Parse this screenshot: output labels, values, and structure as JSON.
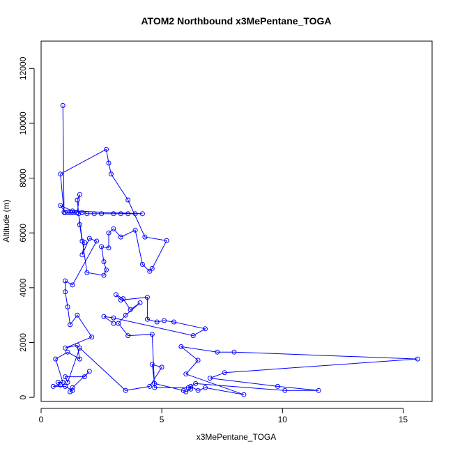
{
  "chart_data": {
    "type": "line",
    "title": "ATOM2 Northbound x3MePentane_TOGA",
    "xlabel": "x3MePentane_TOGA",
    "ylabel": "Altitude (m)",
    "xlim": [
      0,
      16.2
    ],
    "ylim": [
      -150,
      13000
    ],
    "xticks": [
      0,
      5,
      10,
      15
    ],
    "yticks": [
      0,
      2000,
      4000,
      6000,
      8000,
      10000,
      12000
    ],
    "series_color": "#0000ff",
    "background": "#ffffff",
    "points": [
      [
        0.9,
        10650
      ],
      [
        0.95,
        6750
      ],
      [
        0.8,
        8150
      ],
      [
        2.7,
        9050
      ],
      [
        2.8,
        8550
      ],
      [
        2.9,
        8150
      ],
      [
        3.6,
        7200
      ],
      [
        4.3,
        5850
      ],
      [
        5.2,
        5720
      ],
      [
        4.6,
        4700
      ],
      [
        4.5,
        4600
      ],
      [
        4.2,
        4850
      ],
      [
        3.9,
        6100
      ],
      [
        3.3,
        5850
      ],
      [
        3.0,
        6150
      ],
      [
        2.8,
        6000
      ],
      [
        2.8,
        5450
      ],
      [
        2.5,
        5500
      ],
      [
        2.6,
        4950
      ],
      [
        2.7,
        4650
      ],
      [
        2.6,
        4450
      ],
      [
        1.9,
        4550
      ],
      [
        1.55,
        6700
      ],
      [
        1.7,
        6750
      ],
      [
        1.9,
        6700
      ],
      [
        2.2,
        6700
      ],
      [
        2.5,
        6700
      ],
      [
        3.0,
        6700
      ],
      [
        3.3,
        6700
      ],
      [
        3.6,
        6700
      ],
      [
        3.9,
        6700
      ],
      [
        4.2,
        6700
      ],
      [
        1.3,
        6800
      ],
      [
        0.8,
        7000
      ],
      [
        1.0,
        6750
      ],
      [
        1.1,
        6750
      ],
      [
        1.2,
        6750
      ],
      [
        1.3,
        6750
      ],
      [
        1.4,
        6750
      ],
      [
        1.5,
        6750
      ],
      [
        1.6,
        7400
      ],
      [
        1.5,
        7200
      ],
      [
        1.6,
        6300
      ],
      [
        1.7,
        5700
      ],
      [
        1.8,
        5650
      ],
      [
        1.7,
        5200
      ],
      [
        2.0,
        5800
      ],
      [
        2.3,
        5700
      ],
      [
        1.3,
        4100
      ],
      [
        1.0,
        4250
      ],
      [
        1.0,
        3850
      ],
      [
        1.1,
        3300
      ],
      [
        1.2,
        2650
      ],
      [
        1.5,
        3000
      ],
      [
        2.1,
        2200
      ],
      [
        1.0,
        1800
      ],
      [
        1.5,
        1900
      ],
      [
        1.6,
        1400
      ],
      [
        1.1,
        1650
      ],
      [
        0.6,
        1400
      ],
      [
        0.9,
        550
      ],
      [
        0.7,
        550
      ],
      [
        0.8,
        450
      ],
      [
        0.5,
        400
      ],
      [
        1.0,
        400
      ],
      [
        1.3,
        250
      ],
      [
        1.2,
        200
      ],
      [
        1.3,
        350
      ],
      [
        2.0,
        950
      ],
      [
        1.8,
        750
      ],
      [
        1.0,
        750
      ],
      [
        1.1,
        550
      ],
      [
        1.6,
        1800
      ],
      [
        3.5,
        250
      ],
      [
        4.5,
        400
      ],
      [
        5.0,
        1100
      ],
      [
        4.6,
        1200
      ],
      [
        4.7,
        500
      ],
      [
        5.9,
        250
      ],
      [
        6.0,
        200
      ],
      [
        6.2,
        300
      ],
      [
        6.2,
        400
      ],
      [
        6.5,
        250
      ],
      [
        6.8,
        350
      ],
      [
        8.4,
        100
      ],
      [
        6.0,
        850
      ],
      [
        6.5,
        1350
      ],
      [
        5.8,
        1850
      ],
      [
        7.3,
        1650
      ],
      [
        8.0,
        1650
      ],
      [
        15.6,
        1400
      ],
      [
        7.6,
        900
      ],
      [
        7.0,
        700
      ],
      [
        9.8,
        400
      ],
      [
        11.5,
        250
      ],
      [
        10.1,
        250
      ],
      [
        6.4,
        500
      ],
      [
        6.1,
        350
      ],
      [
        4.7,
        350
      ],
      [
        4.6,
        2300
      ],
      [
        3.6,
        2250
      ],
      [
        3.2,
        2700
      ],
      [
        3.5,
        3000
      ],
      [
        4.1,
        3450
      ],
      [
        3.7,
        3200
      ],
      [
        3.4,
        3600
      ],
      [
        3.1,
        3750
      ],
      [
        3.3,
        3550
      ],
      [
        4.4,
        3650
      ],
      [
        4.4,
        2850
      ],
      [
        4.8,
        2750
      ],
      [
        5.1,
        2800
      ],
      [
        5.5,
        2750
      ],
      [
        6.8,
        2500
      ],
      [
        6.3,
        2250
      ],
      [
        3.0,
        2900
      ],
      [
        2.6,
        2950
      ],
      [
        3.0,
        2700
      ]
    ]
  }
}
